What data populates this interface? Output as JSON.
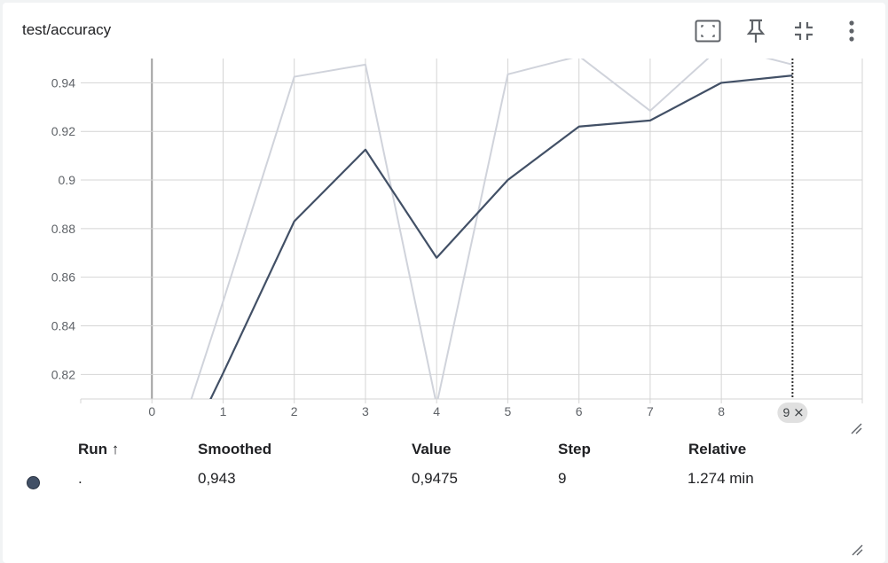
{
  "card": {
    "title": "test/accuracy"
  },
  "toolbar": {
    "fit_icon": "fit-domain-icon",
    "pin_icon": "pin-icon",
    "collapse_icon": "collapse-icon",
    "more_icon": "more-vert-icon"
  },
  "colors": {
    "smoothed_line": "#425066",
    "raw_line": "#d0d3db",
    "grid": "#d4d4d4",
    "axis_zero": "#a0a0a0",
    "cursor": "#333333",
    "step_badge_bg": "#e0e0e0"
  },
  "chart_data": {
    "type": "line",
    "title": "test/accuracy",
    "xlabel": "",
    "ylabel": "",
    "x_ticks": [
      0,
      1,
      2,
      3,
      4,
      5,
      6,
      7,
      8
    ],
    "y_ticks": [
      "0.82",
      "0.84",
      "0.86",
      "0.88",
      "0.9",
      "0.92",
      "0.94"
    ],
    "xlim": [
      -1,
      9.98
    ],
    "ylim": [
      0.8099,
      0.95
    ],
    "grid": true,
    "series": [
      {
        "role": "raw",
        "x": [
          0,
          1,
          2,
          3,
          4,
          5,
          6,
          7,
          8,
          9
        ],
        "y": [
          0.76,
          0.85,
          0.9425,
          0.9475,
          0.8075,
          0.9435,
          0.951,
          0.9285,
          0.955,
          0.9475
        ]
      },
      {
        "role": "smoothed",
        "x": [
          0,
          1,
          2,
          3,
          4,
          5,
          6,
          7,
          8,
          9
        ],
        "y": [
          0.76,
          0.8205,
          0.883,
          0.9125,
          0.868,
          0.9,
          0.922,
          0.9245,
          0.94,
          0.943
        ]
      }
    ],
    "cursor_step": "9",
    "cursor_close": "×"
  },
  "table": {
    "headers": {
      "run": "Run ↑",
      "smoothed": "Smoothed",
      "value": "Value",
      "step": "Step",
      "relative": "Relative"
    },
    "rows": [
      {
        "run": ".",
        "smoothed": "0,943",
        "value": "0,9475",
        "step": "9",
        "relative": "1.274 min"
      }
    ]
  }
}
